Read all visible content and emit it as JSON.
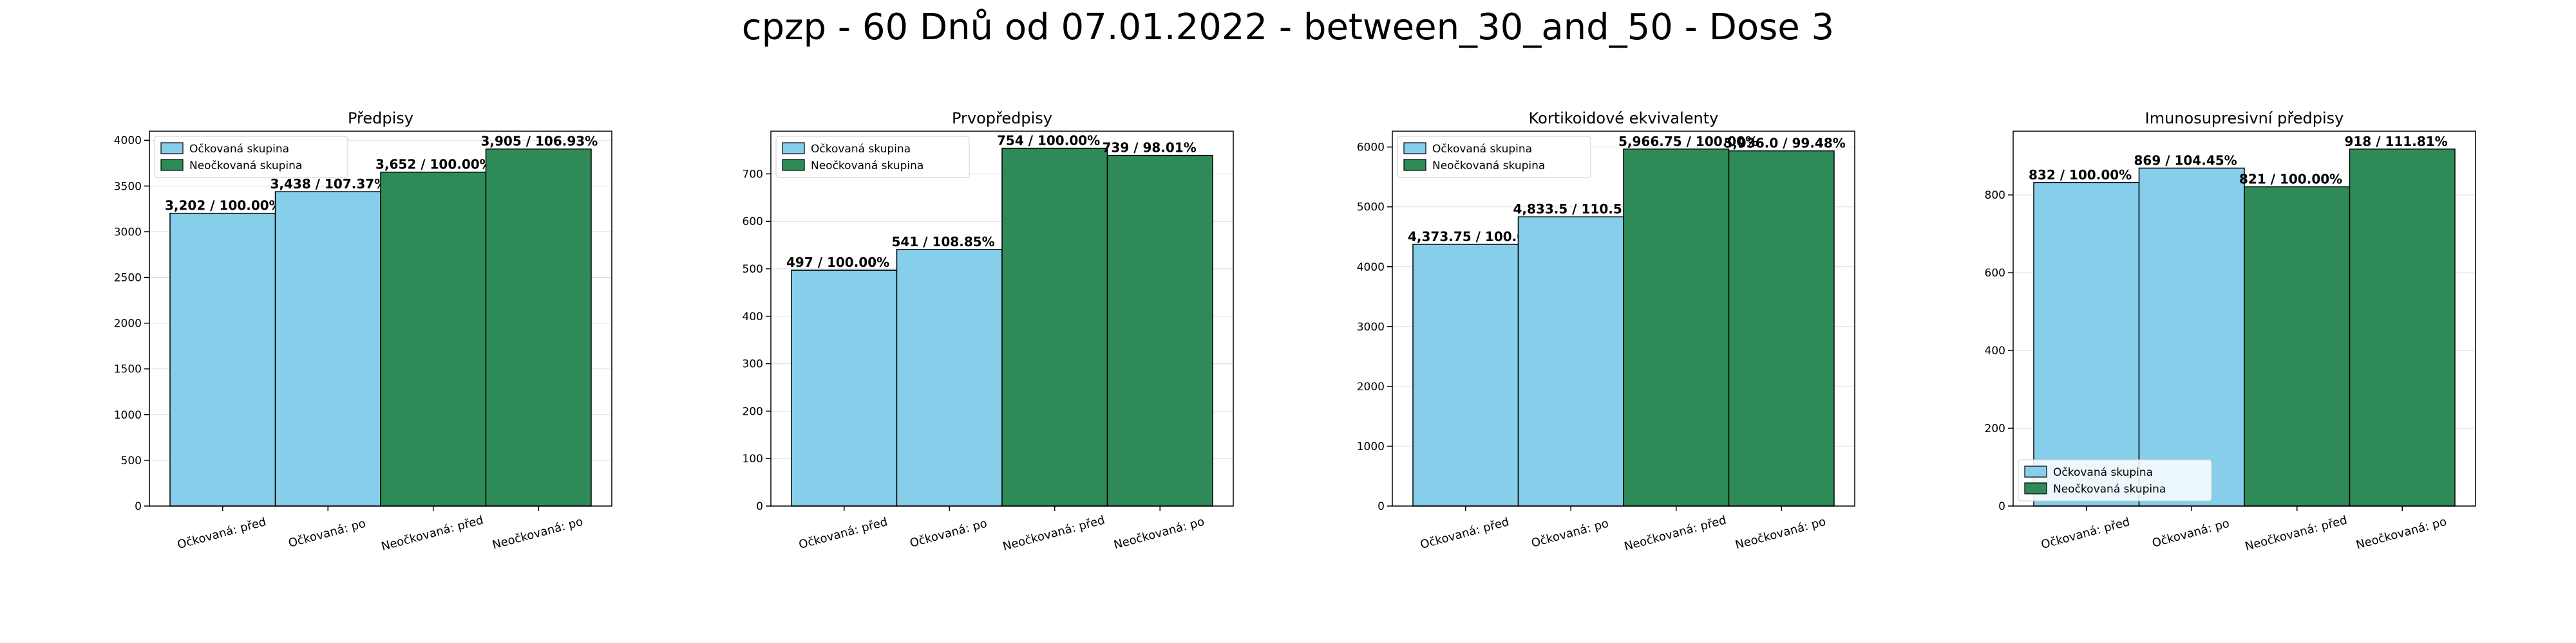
{
  "title": "cpzp - 60 Dnů od 07.01.2022 - between_30_and_50 - Dose 3",
  "colors": {
    "vaccinated": "#87ceeb",
    "unvaccinated": "#2e8b57",
    "edge": "#000000",
    "grid": "#dddddd"
  },
  "legend_labels": [
    "Očkovaná skupina",
    "Neočkovaná skupina"
  ],
  "chart_data": [
    {
      "type": "bar",
      "title": "Předpisy",
      "categories": [
        "Očkovaná: před",
        "Očkovaná: po",
        "Neočkovaná: před",
        "Neočkovaná: po"
      ],
      "values": [
        3202,
        3438,
        3652,
        3905
      ],
      "value_labels": [
        "3,202 / 100.00%",
        "3,438 / 107.37%",
        "3,652 / 100.00%",
        "3,905 / 106.93%"
      ],
      "groups": [
        "vaccinated",
        "vaccinated",
        "unvaccinated",
        "unvaccinated"
      ],
      "ylim": [
        0,
        4100
      ],
      "yticks": [
        0,
        500,
        1000,
        1500,
        2000,
        2500,
        3000,
        3500,
        4000
      ],
      "legend": "upper left",
      "grid": true
    },
    {
      "type": "bar",
      "title": "Prvopředpisy",
      "categories": [
        "Očkovaná: před",
        "Očkovaná: po",
        "Neočkovaná: před",
        "Neočkovaná: po"
      ],
      "values": [
        497,
        541,
        754,
        739
      ],
      "value_labels": [
        "497 / 100.00%",
        "541 / 108.85%",
        "754 / 100.00%",
        "739 / 98.01%"
      ],
      "groups": [
        "vaccinated",
        "vaccinated",
        "unvaccinated",
        "unvaccinated"
      ],
      "ylim": [
        0,
        790
      ],
      "yticks": [
        0,
        100,
        200,
        300,
        400,
        500,
        600,
        700
      ],
      "legend": "upper left",
      "grid": true
    },
    {
      "type": "bar",
      "title": "Kortikoidové ekvivalenty",
      "categories": [
        "Očkovaná: před",
        "Očkovaná: po",
        "Neočkovaná: před",
        "Neočkovaná: po"
      ],
      "values": [
        4373.75,
        4833.5,
        5966.75,
        5936.0
      ],
      "value_labels": [
        "4,373.75 / 100.00%",
        "4,833.5 / 110.51%",
        "5,966.75 / 100.00%",
        "5,936.0 / 99.48%"
      ],
      "groups": [
        "vaccinated",
        "vaccinated",
        "unvaccinated",
        "unvaccinated"
      ],
      "ylim": [
        0,
        6265
      ],
      "yticks": [
        0,
        1000,
        2000,
        3000,
        4000,
        5000,
        6000
      ],
      "legend": "upper left",
      "grid": true
    },
    {
      "type": "bar",
      "title": "Imunosupresivní předpisy",
      "categories": [
        "Očkovaná: před",
        "Očkovaná: po",
        "Neočkovaná: před",
        "Neočkovaná: po"
      ],
      "values": [
        832,
        869,
        821,
        918
      ],
      "value_labels": [
        "832 / 100.00%",
        "869 / 104.45%",
        "821 / 100.00%",
        "918 / 111.81%"
      ],
      "groups": [
        "vaccinated",
        "vaccinated",
        "unvaccinated",
        "unvaccinated"
      ],
      "ylim": [
        0,
        964
      ],
      "yticks": [
        0,
        200,
        400,
        600,
        800
      ],
      "legend": "lower left",
      "grid": true
    }
  ]
}
